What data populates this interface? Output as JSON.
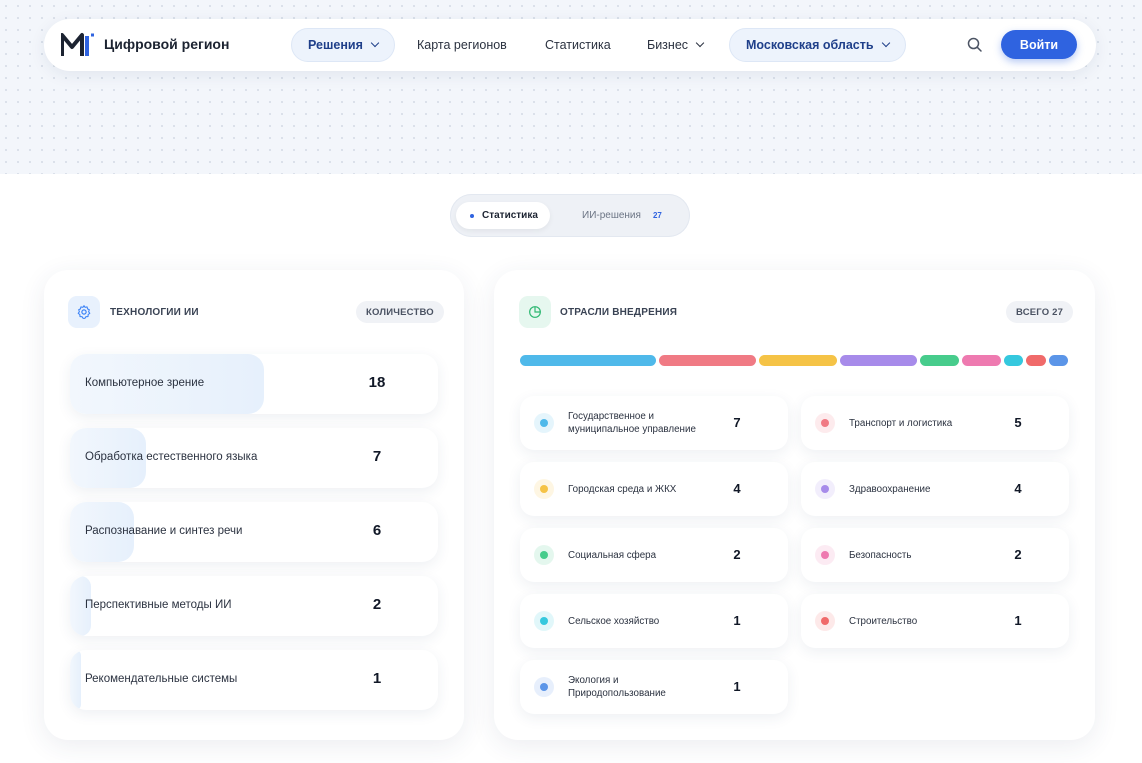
{
  "header": {
    "brand": "Цифровой регион",
    "nav": [
      {
        "label": "Решения",
        "dropdown": true,
        "active": true
      },
      {
        "label": "Карта регионов",
        "dropdown": false
      },
      {
        "label": "Статистика",
        "dropdown": false
      },
      {
        "label": "Бизнес",
        "dropdown": true
      },
      {
        "label": "Московская область",
        "dropdown": true,
        "region": true
      }
    ],
    "search_icon": "search-icon",
    "login_label": "Войти"
  },
  "tabs": {
    "active": {
      "label": "Статистика"
    },
    "inactive": {
      "label": "ИИ-решения",
      "count": "27"
    }
  },
  "tech_card": {
    "title": "ТЕХНОЛОГИИ ИИ",
    "badge": "КОЛИЧЕСТВО",
    "icon": "gear-icon",
    "items": [
      {
        "label": "Компьютерное зрение",
        "value": "18",
        "share": 1.0
      },
      {
        "label": "Обработка естественного языка",
        "value": "7",
        "share": 0.39
      },
      {
        "label": "Распознавание и синтез речи",
        "value": "6",
        "share": 0.33
      },
      {
        "label": "Перспективные методы ИИ",
        "value": "2",
        "share": 0.11
      },
      {
        "label": "Рекомендательные системы",
        "value": "1",
        "share": 0.055
      }
    ]
  },
  "industry_card": {
    "title": "ОТРАСЛИ ВНЕДРЕНИЯ",
    "badge": "ВСЕГО 27",
    "icon": "pie-chart-icon",
    "items": [
      {
        "label": "Государственное и муниципальное управление",
        "value": "7",
        "color": "#4fb9ea"
      },
      {
        "label": "Транспорт и логистика",
        "value": "5",
        "color": "#f07a84"
      },
      {
        "label": "Городская среда и ЖКХ",
        "value": "4",
        "color": "#f5c346"
      },
      {
        "label": "Здравоохранение",
        "value": "4",
        "color": "#a78bea"
      },
      {
        "label": "Социальная сфера",
        "value": "2",
        "color": "#47cc8c"
      },
      {
        "label": "Безопасность",
        "value": "2",
        "color": "#ee7ab0"
      },
      {
        "label": "Сельское хозяйство",
        "value": "1",
        "color": "#35c8de"
      },
      {
        "label": "Строительство",
        "value": "1",
        "color": "#f06a6a"
      },
      {
        "label": "Экология и Природопользование",
        "value": "1",
        "color": "#5b95e8"
      }
    ]
  }
}
